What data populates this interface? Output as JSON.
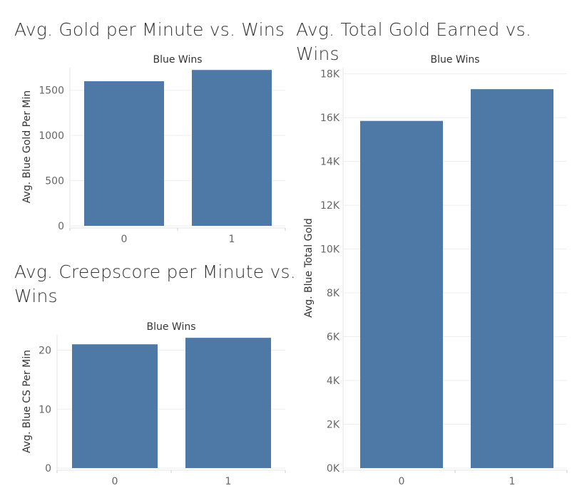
{
  "dashboard": {
    "bar_color": "#4e79a7",
    "titles": {
      "gold_per_min": "Avg. Gold per Minute vs. Wins",
      "total_gold": "Avg. Total Gold Earned vs. Wins",
      "cs_per_min_line1": "Avg. Creepscore per Minute vs.",
      "cs_per_min_line2": "Wins"
    }
  },
  "chart_data": [
    {
      "id": "gold_per_min",
      "type": "bar",
      "column_header": "Blue Wins",
      "ylabel": "Avg. Blue Gold Per Min",
      "categories": [
        "0",
        "1"
      ],
      "values": [
        1600,
        1725
      ],
      "ylim": [
        0,
        1750
      ],
      "yticks": [
        0,
        500,
        1000,
        1500
      ],
      "ytick_labels": [
        "0",
        "500",
        "1000",
        "1500"
      ]
    },
    {
      "id": "cs_per_min",
      "type": "bar",
      "column_header": "Blue Wins",
      "ylabel": "Avg. Blue CS Per Min",
      "categories": [
        "0",
        "1"
      ],
      "values": [
        21.0,
        22.1
      ],
      "ylim": [
        0,
        22.6
      ],
      "yticks": [
        0,
        10,
        20
      ],
      "ytick_labels": [
        "0",
        "10",
        "20"
      ]
    },
    {
      "id": "total_gold",
      "type": "bar",
      "column_header": "Blue Wins",
      "ylabel": "Avg. Blue Total Gold",
      "categories": [
        "0",
        "1"
      ],
      "values": [
        15850,
        17300
      ],
      "ylim": [
        0,
        18280
      ],
      "yticks": [
        0,
        2000,
        4000,
        6000,
        8000,
        10000,
        12000,
        14000,
        16000,
        18000
      ],
      "ytick_labels": [
        "0K",
        "2K",
        "4K",
        "6K",
        "8K",
        "10K",
        "12K",
        "14K",
        "16K",
        "18K"
      ]
    }
  ]
}
